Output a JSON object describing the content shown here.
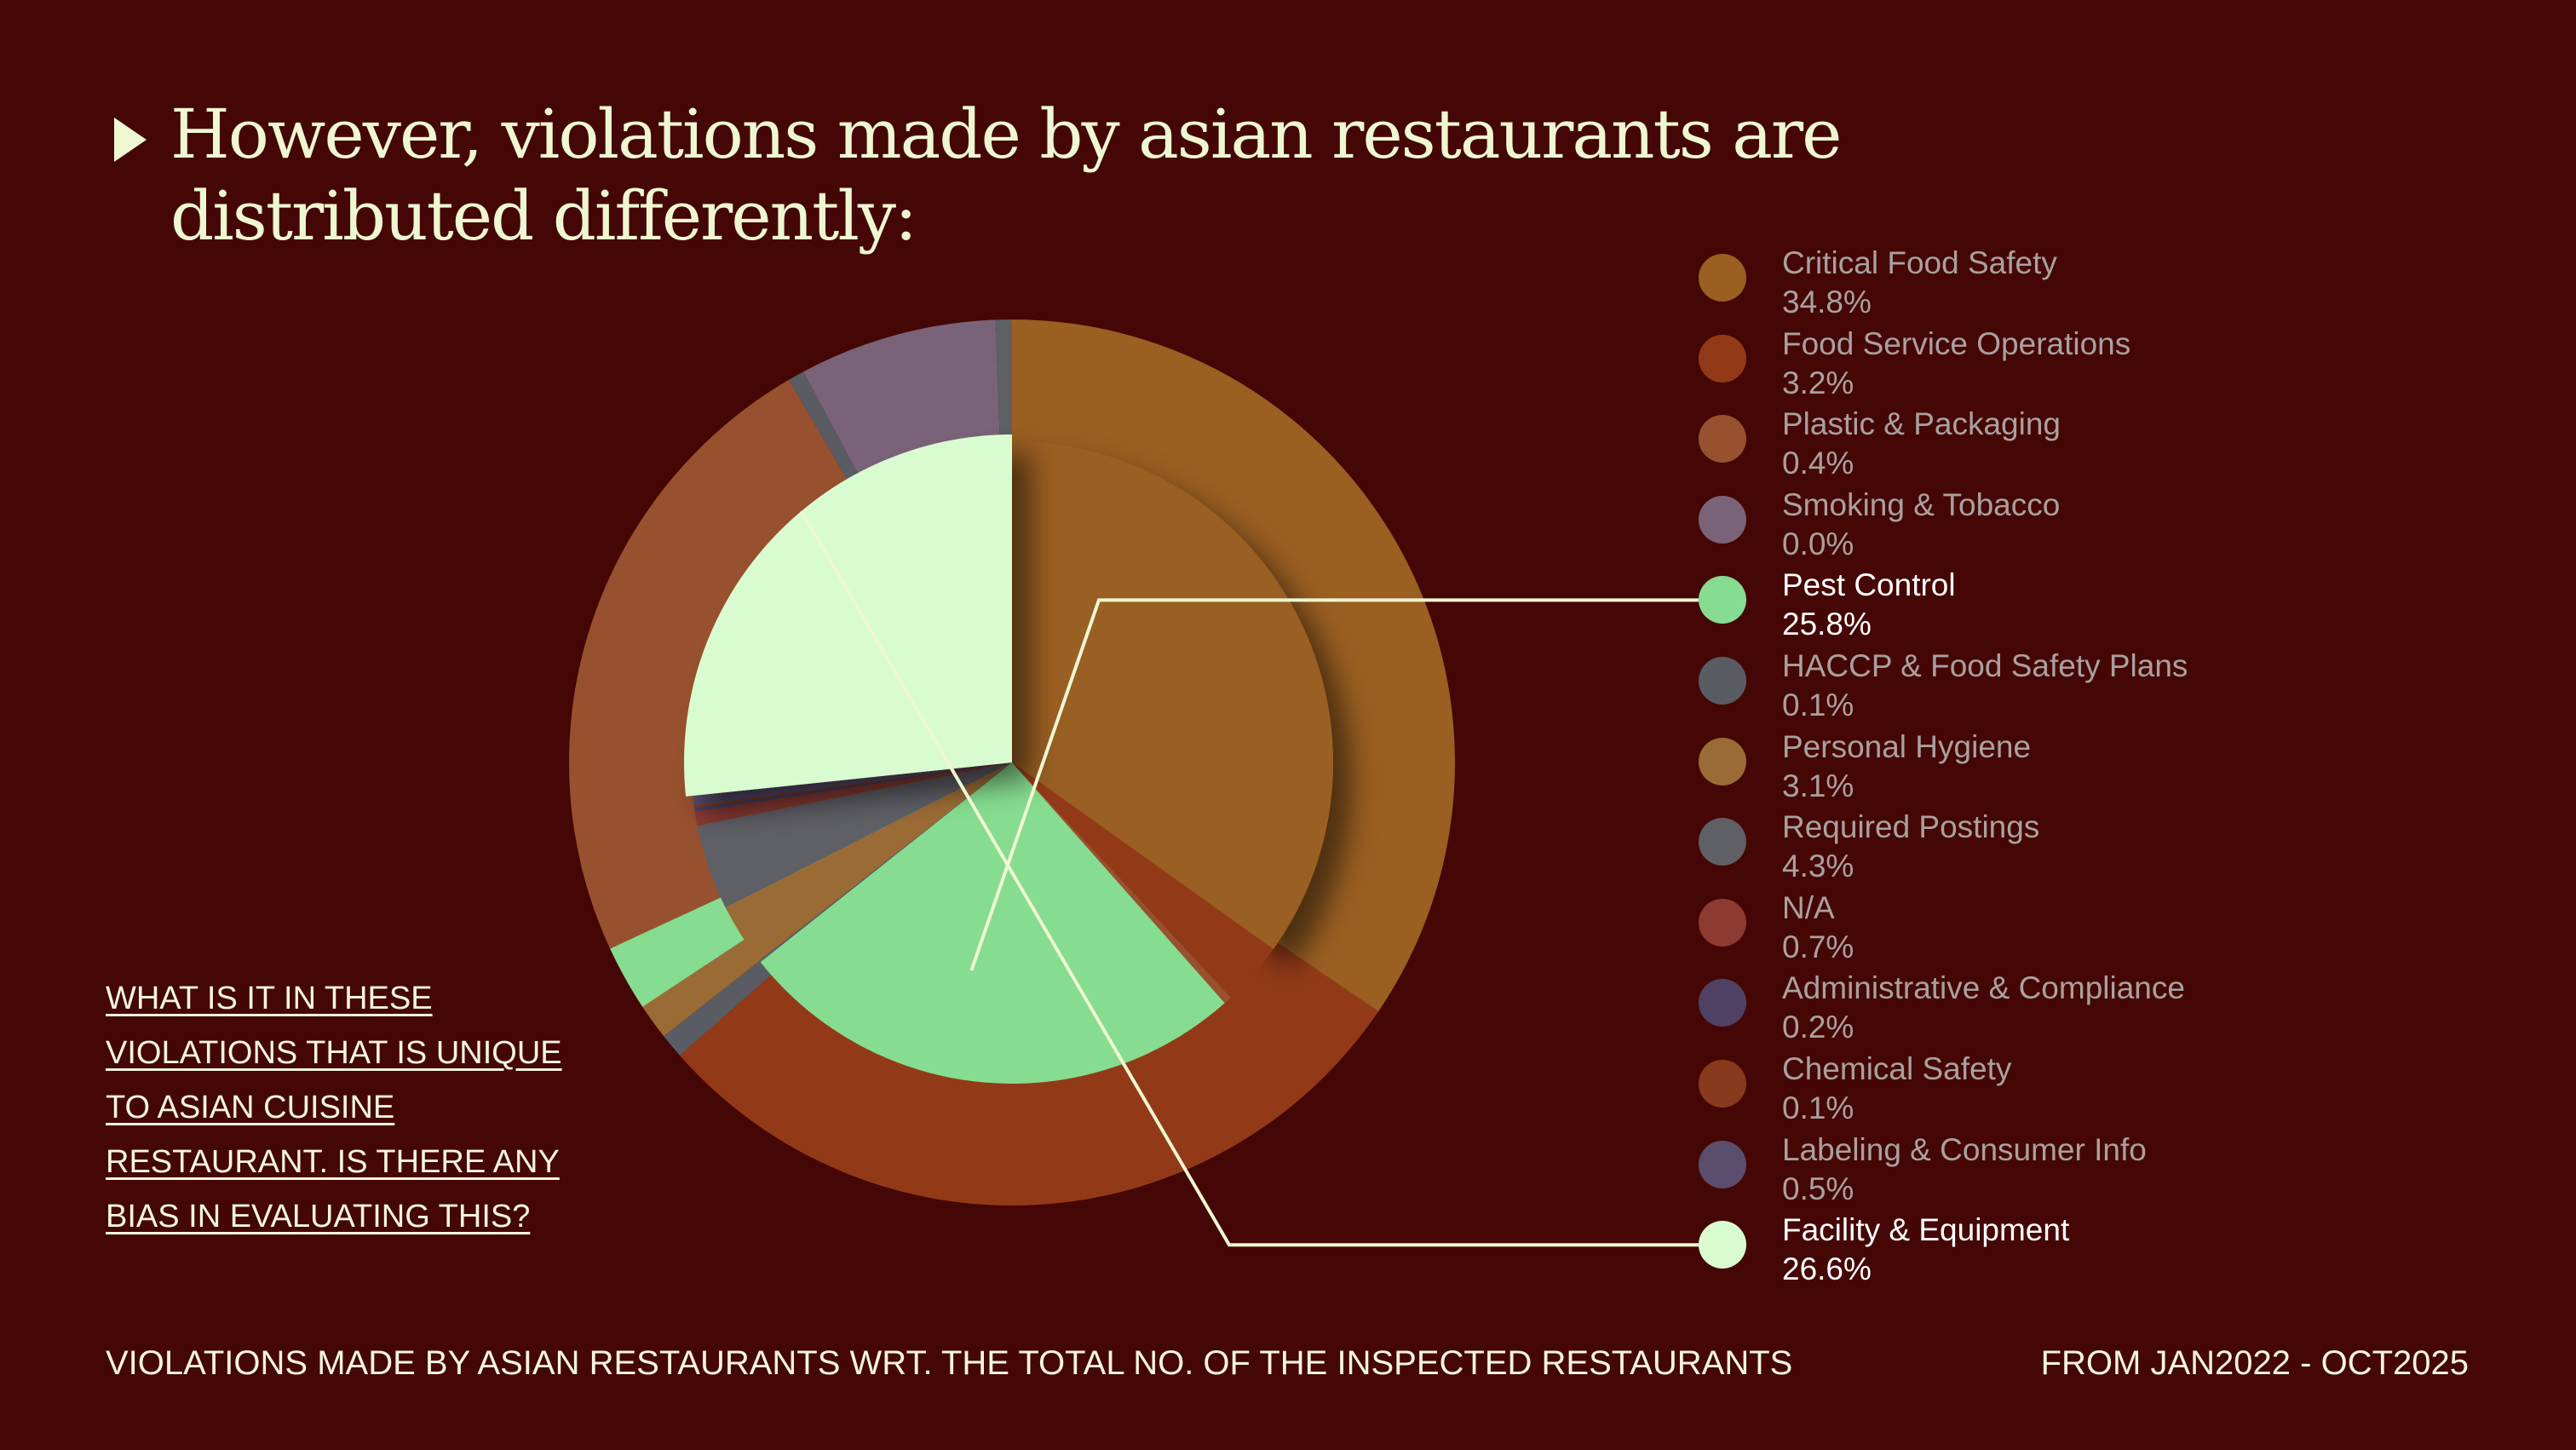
{
  "title": {
    "line1": "However, violations made by asian restaurants are",
    "line2": "distributed differently:"
  },
  "question": {
    "line1": "WHAT IS IT IN THESE",
    "line2": "VIOLATIONS THAT IS UNIQUE",
    "line3": "TO ASIAN CUISINE",
    "line4": "RESTAURANT. IS THERE ANY",
    "line5": "BIAS IN EVALUATING THIS?"
  },
  "footer": {
    "left": "VIOLATIONS MADE BY ASIAN RESTAURANTS WRT. THE TOTAL NO. OF THE INSPECTED RESTAURANTS",
    "right": "FROM JAN2022 - OCT2025"
  },
  "chart_data": {
    "type": "pie",
    "title": "However, violations made by asian restaurants are distributed differently:",
    "legend_position": "right",
    "highlighted": [
      "Pest Control",
      "Facility & Equipment"
    ],
    "slices": [
      {
        "name": "Critical Food Safety",
        "label": "34.8%",
        "value": 34.8,
        "color": "#9a5f21"
      },
      {
        "name": "Food Service Operations",
        "label": "3.2%",
        "value": 3.2,
        "color": "#923a17"
      },
      {
        "name": "Plastic & Packaging",
        "label": "0.4%",
        "value": 0.4,
        "color": "#98512e"
      },
      {
        "name": "Smoking & Tobacco",
        "label": "0.0%",
        "value": 0.0,
        "color": "#7a6379"
      },
      {
        "name": "Pest Control",
        "label": "25.8%",
        "value": 25.8,
        "color": "#86dc90"
      },
      {
        "name": "HACCP & Food Safety Plans",
        "label": "0.1%",
        "value": 0.1,
        "color": "#5a5c64"
      },
      {
        "name": "Personal Hygiene",
        "label": "3.1%",
        "value": 3.1,
        "color": "#9b6b35"
      },
      {
        "name": "Required Postings",
        "label": "4.3%",
        "value": 4.3,
        "color": "#5f5f66"
      },
      {
        "name": "N/A",
        "label": "0.7%",
        "value": 0.7,
        "color": "#8c3a32"
      },
      {
        "name": "Administrative & Compliance",
        "label": "0.2%",
        "value": 0.2,
        "color": "#4e4164"
      },
      {
        "name": "Chemical Safety",
        "label": "0.1%",
        "value": 0.1,
        "color": "#883a1c"
      },
      {
        "name": "Labeling & Consumer Info",
        "label": "0.5%",
        "value": 0.5,
        "color": "#5b4d6e"
      },
      {
        "name": "Facility & Equipment",
        "label": "26.6%",
        "value": 26.6,
        "color": "#d9fbd0"
      }
    ],
    "outer_ring_order": [
      "Critical Food Safety",
      "Food Service Operations",
      "HACCP & Food Safety Plans",
      "Personal Hygiene",
      "Pest Control",
      "Plastic & Packaging",
      "HACCP & Food Safety Plans",
      "Smoking & Tobacco",
      "Required Postings"
    ]
  }
}
